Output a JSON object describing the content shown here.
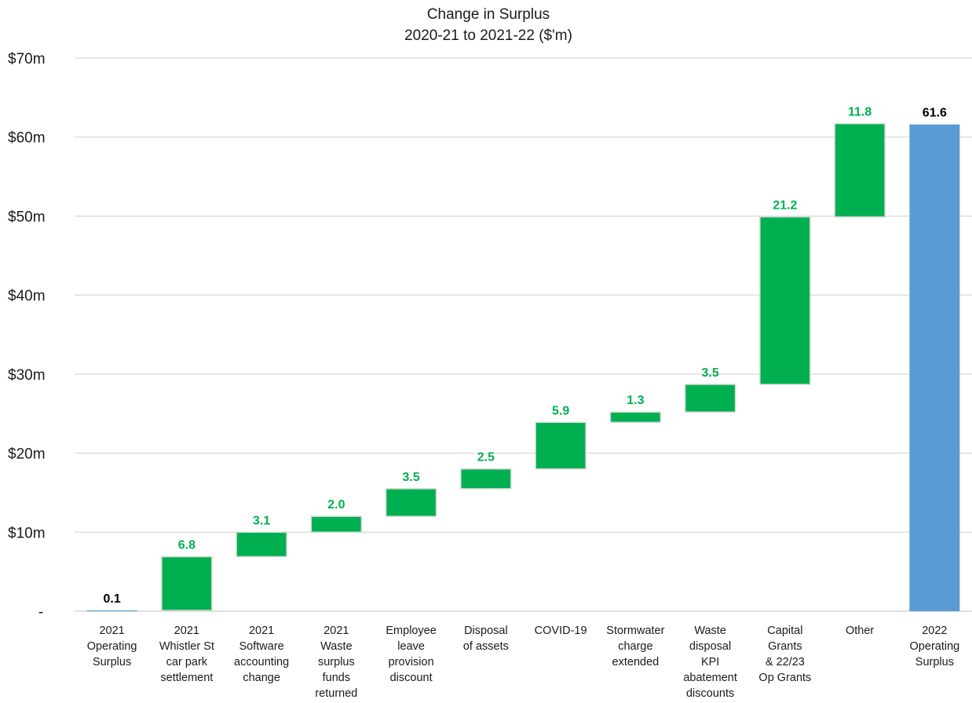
{
  "chart_data": {
    "type": "bar",
    "subtype": "waterfall",
    "title": "Change in Surplus",
    "subtitle": "2020-21 to 2021-22 ($'m)",
    "xlabel": "",
    "ylabel": "",
    "ylim": [
      0,
      70
    ],
    "y_ticks": [
      {
        "value": 0,
        "label": "-"
      },
      {
        "value": 10,
        "label": "$10m"
      },
      {
        "value": 20,
        "label": "$20m"
      },
      {
        "value": 30,
        "label": "$30m"
      },
      {
        "value": 40,
        "label": "$40m"
      },
      {
        "value": 50,
        "label": "$50m"
      },
      {
        "value": 60,
        "label": "$60m"
      },
      {
        "value": 70,
        "label": "$70m"
      }
    ],
    "grid": true,
    "legend": "none",
    "colors": {
      "total": "#5b9bd5",
      "increase": "#00b050",
      "total_label": "#000000",
      "increase_label": "#00b050"
    },
    "categories": [
      [
        "2021",
        "Operating",
        "Surplus"
      ],
      [
        "2021",
        "Whistler St",
        "car park",
        "settlement"
      ],
      [
        "2021",
        "Software",
        "accounting",
        "change"
      ],
      [
        "2021",
        "Waste",
        "surplus",
        "funds",
        "returned"
      ],
      [
        "Employee",
        "leave",
        "provision",
        "discount"
      ],
      [
        "Disposal",
        "of assets"
      ],
      [
        "COVID-19"
      ],
      [
        "Stormwater",
        "charge",
        "extended"
      ],
      [
        "Waste",
        "disposal",
        "KPI",
        "abatement",
        "discounts"
      ],
      [
        "Capital",
        "Grants",
        "& 22/23",
        "Op Grants"
      ],
      [
        "Other"
      ],
      [
        "2022",
        "Operating",
        "Surplus"
      ]
    ],
    "values": [
      0.1,
      6.8,
      3.1,
      2.0,
      3.5,
      2.5,
      5.9,
      1.3,
      3.5,
      21.2,
      11.8,
      61.6
    ],
    "value_labels": [
      "0.1",
      "6.8",
      "3.1",
      "2.0",
      "3.5",
      "2.5",
      "5.9",
      "1.3",
      "3.5",
      "21.2",
      "11.8",
      "61.6"
    ],
    "bar_kind": [
      "total",
      "increase",
      "increase",
      "increase",
      "increase",
      "increase",
      "increase",
      "increase",
      "increase",
      "increase",
      "increase",
      "total"
    ]
  }
}
